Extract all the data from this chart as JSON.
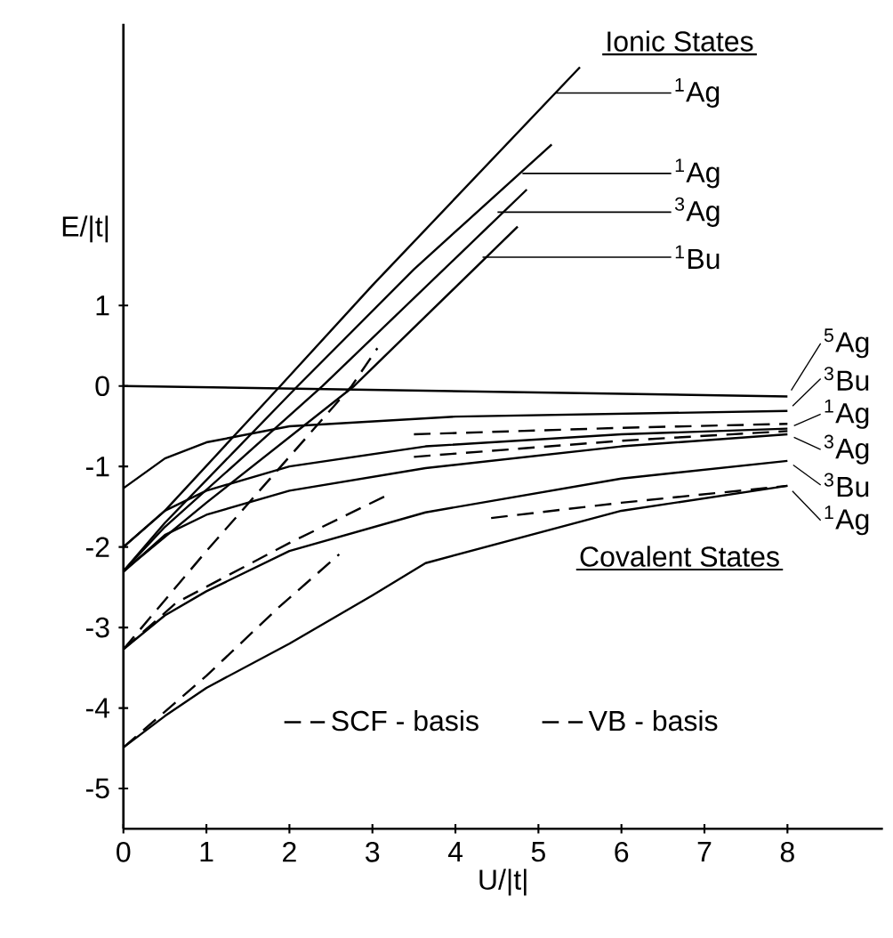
{
  "chart_data": {
    "type": "line",
    "xlabel": "U/|t|",
    "ylabel": "E/|t|",
    "xlim": [
      0,
      9.15
    ],
    "ylim": [
      -5.5,
      4.5
    ],
    "xticks": [
      0,
      1,
      2,
      3,
      4,
      5,
      6,
      7,
      8
    ],
    "yticks": [
      -5,
      -4,
      -3,
      -2,
      -1,
      0,
      1
    ],
    "legend": "bottom",
    "grid": false,
    "series": [
      {
        "color": "#000000",
        "line_style": "solid",
        "x": [
          0,
          0.5,
          1.89,
          3,
          5.5
        ],
        "values": [
          -2.0,
          -1.55,
          0,
          1.25,
          3.96
        ]
      },
      {
        "color": "#000000",
        "line_style": "solid",
        "x": [
          0,
          0.5,
          2.1,
          3.5,
          5.16
        ],
        "values": [
          -2.3,
          -1.7,
          0,
          1.45,
          3.0
        ]
      },
      {
        "color": "#000000",
        "line_style": "solid",
        "x": [
          0,
          0.5,
          2.4,
          4.86
        ],
        "values": [
          -2.3,
          -1.75,
          0,
          2.44
        ]
      },
      {
        "color": "#000000",
        "line_style": "solid",
        "x": [
          0,
          1,
          2.78,
          4.75
        ],
        "values": [
          -2.3,
          -1.45,
          0,
          1.98
        ]
      },
      {
        "color": "#000000",
        "line_style": "solid",
        "x": [
          0,
          8
        ],
        "values": [
          0,
          -0.13
        ]
      },
      {
        "color": "#000000",
        "line_style": "solid",
        "x": [
          0,
          0.5,
          1,
          2,
          4,
          8
        ],
        "values": [
          -1.27,
          -0.9,
          -0.7,
          -0.5,
          -0.38,
          -0.31
        ]
      },
      {
        "color": "#000000",
        "line_style": "solid",
        "x": [
          0,
          0.5,
          1,
          2,
          3.64,
          6,
          8
        ],
        "values": [
          -2.0,
          -1.55,
          -1.3,
          -1.0,
          -0.75,
          -0.6,
          -0.53
        ]
      },
      {
        "color": "#000000",
        "line_style": "solid",
        "x": [
          0,
          0.5,
          1,
          2,
          3.64,
          6,
          8
        ],
        "values": [
          -2.31,
          -1.85,
          -1.6,
          -1.3,
          -1.02,
          -0.75,
          -0.6
        ]
      },
      {
        "color": "#000000",
        "line_style": "solid",
        "x": [
          0,
          0.5,
          1,
          2,
          3.64,
          6,
          8
        ],
        "values": [
          -3.27,
          -2.85,
          -2.55,
          -2.05,
          -1.57,
          -1.15,
          -0.93
        ]
      },
      {
        "color": "#000000",
        "line_style": "solid",
        "x": [
          0,
          0.5,
          1,
          2,
          3,
          3.64,
          6,
          8
        ],
        "values": [
          -4.49,
          -4.1,
          -3.75,
          -3.2,
          -2.6,
          -2.2,
          -1.55,
          -1.24
        ]
      },
      {
        "name": "SCF - basis",
        "color": "#000000",
        "line_style": "dashed",
        "x": [
          0,
          1,
          2.75,
          3.06
        ],
        "values": [
          -3.27,
          -2.05,
          0,
          0.47
        ]
      },
      {
        "color": "#000000",
        "line_style": "dashed",
        "x": [
          0,
          1,
          1.86,
          2.6
        ],
        "values": [
          -4.49,
          -3.6,
          -2.76,
          -2.09
        ]
      },
      {
        "name": "VB - basis",
        "color": "#000000",
        "line_style": "dashed",
        "x": [
          0,
          0.64,
          2,
          3.17
        ],
        "values": [
          -3.27,
          -2.69,
          -1.95,
          -1.36
        ]
      },
      {
        "color": "#000000",
        "line_style": "dashed",
        "x": [
          3.5,
          6,
          8
        ],
        "values": [
          -0.6,
          -0.52,
          -0.47
        ]
      },
      {
        "color": "#000000",
        "line_style": "dashed",
        "x": [
          3.5,
          6,
          8
        ],
        "values": [
          -0.88,
          -0.68,
          -0.56
        ]
      },
      {
        "color": "#000000",
        "line_style": "dashed",
        "x": [
          4.43,
          6,
          8
        ],
        "values": [
          -1.64,
          -1.45,
          -1.24
        ]
      }
    ],
    "annotations": [
      "Ionic States",
      "Covalent States",
      "$^{1}$Ag",
      {
        "text": "$^{1}$Ag",
        "x": 4.85,
        "y": 2.64
      },
      {
        "text": "$^{3}$Ag",
        "x": 4.55,
        "y": 2.16
      },
      {
        "text": "$^{1}$Bu",
        "x": 4.37,
        "y": 1.6
      },
      {
        "text": "$^{5}$Ag",
        "x": 8,
        "y": -0.13
      },
      {
        "text": "$^{3}$Bu",
        "x": 8,
        "y": -0.31
      },
      {
        "text": "$^{1}$Ag",
        "x": 8,
        "y": -0.53
      },
      {
        "text": "$^{3}$Ag",
        "x": 8,
        "y": -0.6
      },
      {
        "text": "$^{3}$Bu",
        "x": 8,
        "y": -0.93
      },
      {
        "text": "$^{1}$Ag",
        "x": 8,
        "y": -1.24
      }
    ]
  }
}
